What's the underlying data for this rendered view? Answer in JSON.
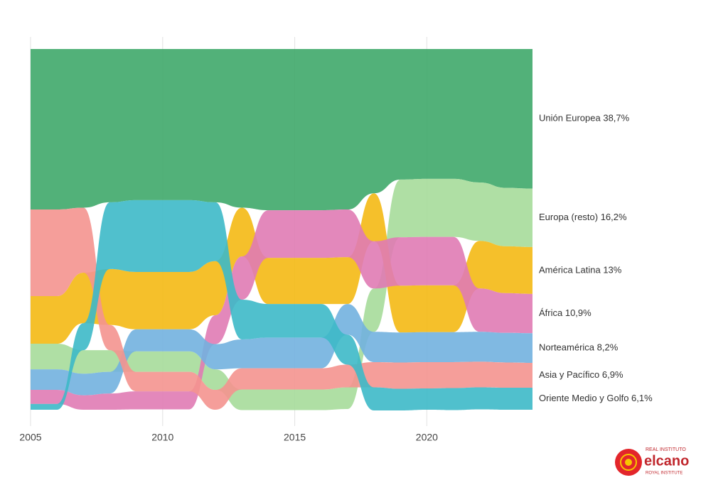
{
  "chart_data": {
    "type": "ranked-stream",
    "x": [
      2005,
      2006,
      2007,
      2008,
      2009,
      2010,
      2011,
      2012,
      2013,
      2014,
      2015,
      2016,
      2017,
      2018,
      2019,
      2020,
      2021,
      2022,
      2023,
      2024
    ],
    "xlim": [
      2005,
      2024
    ],
    "xticks": [
      2005,
      2010,
      2015,
      2020
    ],
    "ylim": [
      0,
      100
    ],
    "grid": true,
    "series": [
      {
        "name": "Unión Europea 38,7%",
        "color": "#3fa96a",
        "values": [
          44.5,
          44.5,
          44,
          42.5,
          41.9,
          41.9,
          41.9,
          42.5,
          44,
          44.7,
          44.7,
          44.7,
          44.5,
          40,
          36.2,
          36,
          36,
          37,
          38.5,
          38.7
        ]
      },
      {
        "name": "Europa (resto) 16,2%",
        "color": "#a6db9a",
        "values": [
          7.1,
          7.1,
          6.5,
          6,
          5.7,
          5.7,
          5.7,
          5.7,
          5.7,
          5.7,
          5.7,
          5.7,
          6,
          12,
          16,
          16.1,
          16.1,
          16.2,
          16.2,
          16.2
        ]
      },
      {
        "name": "América Latina 13%",
        "color": "#f4b914",
        "values": [
          13.2,
          13.2,
          14,
          15.5,
          15.9,
          15.9,
          15.9,
          15,
          13.5,
          12.8,
          12.8,
          12.8,
          13,
          13.3,
          13,
          13,
          13,
          13.2,
          13,
          13
        ]
      },
      {
        "name": "África 10,9%",
        "color": "#e07bb4",
        "values": [
          3.9,
          3.9,
          4,
          4.5,
          5,
          5,
          5,
          8,
          12,
          13.2,
          13.2,
          13.2,
          13.2,
          13.1,
          13.4,
          13.4,
          13.4,
          12,
          11,
          10.9
        ]
      },
      {
        "name": "Norteamérica 8,2%",
        "color": "#72b1df",
        "values": [
          5.7,
          5.7,
          6,
          6,
          6.1,
          6.1,
          6.1,
          7,
          8,
          8.5,
          8.5,
          8.5,
          8.5,
          8.4,
          8.3,
          8.3,
          8.3,
          8.3,
          8.2,
          8.2
        ]
      },
      {
        "name": "Asia y Pacífico 6,9%",
        "color": "#f4938f",
        "values": [
          24,
          24,
          18,
          7,
          5.4,
          5.4,
          5.4,
          5.5,
          5.9,
          5.9,
          5.9,
          5.9,
          6.3,
          7,
          7.3,
          7.3,
          7.2,
          7.1,
          7,
          6.9
        ]
      },
      {
        "name": "Oriente Medio y Golfo 6,1%",
        "color": "#3db9c8",
        "values": [
          1.6,
          1.6,
          7.5,
          18.5,
          19.9,
          19.9,
          19.9,
          16.3,
          11,
          9.3,
          9.3,
          9.3,
          8.3,
          6.4,
          6,
          5.9,
          6.1,
          6.1,
          6.1,
          6.1
        ]
      }
    ]
  },
  "logo": {
    "line1": "REAL INSTITUTO",
    "name": "elcano",
    "line2": "ROYAL INSTITUTE"
  }
}
